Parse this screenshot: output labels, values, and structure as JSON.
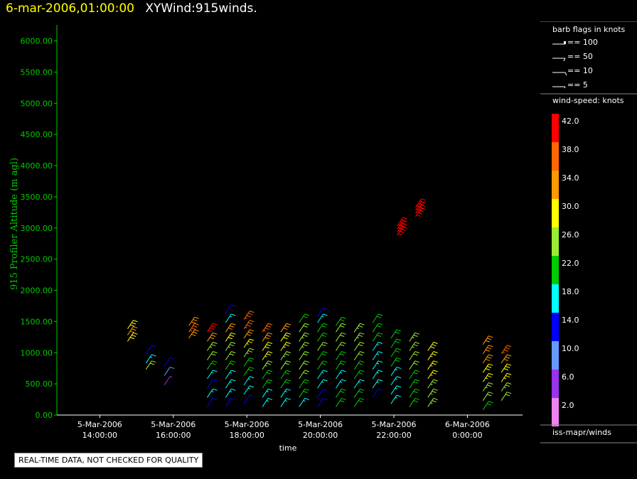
{
  "header": {
    "datetime": "6-mar-2006,01:00:00",
    "title": "XYWind:915winds."
  },
  "notice": "REAL-TIME DATA, NOT CHECKED FOR QUALITY",
  "footer_label": "iss-mapr/winds",
  "colors": {
    "axis_green": "#00cc00",
    "header_yellow": "#ffff00",
    "wind_scale": [
      "#ee82ee",
      "#9933ee",
      "#6699ff",
      "#0000ff",
      "#00ffff",
      "#00cc00",
      "#99ee33",
      "#ffff00",
      "#ff9900",
      "#ff6600",
      "#ff0000"
    ]
  },
  "legend": {
    "barb_title": "barb flags in knots",
    "barb_items": [
      "== 100",
      "== 50",
      "== 10",
      "== 5"
    ],
    "speed_title": "wind-speed: knots",
    "speed_ticks": [
      "42.0",
      "38.0",
      "34.0",
      "30.0",
      "26.0",
      "22.0",
      "18.0",
      "14.0",
      "10.0",
      "6.0",
      "2.0"
    ]
  },
  "chart_data": {
    "type": "scatter",
    "title": "XYWind:915winds.",
    "xlabel": "time",
    "ylabel": "915 Profiler Altitude (m agl)",
    "ylim": [
      0,
      6200
    ],
    "yticks": [
      "0.00",
      "500.00",
      "1000.00",
      "1500.00",
      "2000.00",
      "2500.00",
      "3000.00",
      "3500.00",
      "4000.00",
      "4500.00",
      "5000.00",
      "5500.00",
      "6000.00"
    ],
    "xlim": [
      "5-Mar-2006 12:50",
      "6-Mar-2006 01:30"
    ],
    "xticks": [
      {
        "date": "5-Mar-2006",
        "time": "14:00:00"
      },
      {
        "date": "5-Mar-2006",
        "time": "16:00:00"
      },
      {
        "date": "5-Mar-2006",
        "time": "18:00:00"
      },
      {
        "date": "5-Mar-2006",
        "time": "20:00:00"
      },
      {
        "date": "5-Mar-2006",
        "time": "22:00:00"
      },
      {
        "date": "6-Mar-2006",
        "time": "0:00:00"
      }
    ],
    "value_unit": "knots",
    "columns": [
      {
        "time": "5-Mar-2006 14:50",
        "altitudes": [
          1250,
          1350,
          1450
        ],
        "speeds": [
          30,
          32,
          30
        ]
      },
      {
        "time": "5-Mar-2006 15:20",
        "altitudes": [
          800,
          900,
          1050
        ],
        "speeds": [
          24,
          18,
          14
        ]
      },
      {
        "time": "5-Mar-2006 15:50",
        "altitudes": [
          550,
          700,
          850
        ],
        "speeds": [
          6,
          10,
          14
        ]
      },
      {
        "time": "5-Mar-2006 16:30",
        "altitudes": [
          1300,
          1400,
          1500
        ],
        "speeds": [
          34,
          36,
          34
        ]
      },
      {
        "time": "5-Mar-2006 17:00",
        "altitudes": [
          200,
          350,
          500,
          650,
          800,
          950,
          1100,
          1250,
          1400
        ],
        "speeds": [
          14,
          16,
          14,
          18,
          22,
          24,
          26,
          34,
          40
        ]
      },
      {
        "time": "5-Mar-2006 17:30",
        "altitudes": [
          200,
          350,
          500,
          650,
          800,
          950,
          1100,
          1250,
          1400,
          1550,
          1700
        ],
        "speeds": [
          14,
          16,
          18,
          18,
          22,
          24,
          26,
          30,
          34,
          18,
          14
        ]
      },
      {
        "time": "5-Mar-2006 18:00",
        "altitudes": [
          250,
          400,
          550,
          700,
          850,
          1000,
          1150,
          1300,
          1450,
          1600
        ],
        "speeds": [
          14,
          16,
          18,
          20,
          22,
          26,
          28,
          32,
          36,
          38
        ]
      },
      {
        "time": "5-Mar-2006 18:30",
        "altitudes": [
          200,
          350,
          500,
          650,
          800,
          950,
          1100,
          1250,
          1400
        ],
        "speeds": [
          16,
          18,
          20,
          22,
          26,
          28,
          30,
          34,
          38
        ]
      },
      {
        "time": "5-Mar-2006 19:00",
        "altitudes": [
          200,
          350,
          500,
          650,
          800,
          950,
          1100,
          1250,
          1400
        ],
        "speeds": [
          16,
          18,
          20,
          22,
          24,
          26,
          28,
          30,
          32
        ]
      },
      {
        "time": "5-Mar-2006 19:30",
        "altitudes": [
          200,
          350,
          500,
          650,
          800,
          950,
          1100,
          1250,
          1400,
          1550
        ],
        "speeds": [
          18,
          20,
          22,
          24,
          24,
          24,
          26,
          26,
          24,
          22
        ]
      },
      {
        "time": "5-Mar-2006 20:00",
        "altitudes": [
          200,
          350,
          500,
          650,
          800,
          950,
          1100,
          1250,
          1400,
          1550,
          1650
        ],
        "speeds": [
          14,
          14,
          16,
          18,
          20,
          22,
          24,
          22,
          20,
          16,
          14
        ]
      },
      {
        "time": "5-Mar-2006 20:30",
        "altitudes": [
          200,
          350,
          500,
          650,
          800,
          950,
          1100,
          1250,
          1400,
          1500
        ],
        "speeds": [
          22,
          20,
          18,
          18,
          20,
          22,
          24,
          24,
          24,
          22
        ]
      },
      {
        "time": "5-Mar-2006 21:00",
        "altitudes": [
          200,
          350,
          500,
          650,
          800,
          950,
          1100,
          1250,
          1400
        ],
        "speeds": [
          22,
          20,
          18,
          20,
          22,
          24,
          24,
          26,
          26
        ]
      },
      {
        "time": "5-Mar-2006 21:30",
        "altitudes": [
          350,
          500,
          650,
          800,
          950,
          1100,
          1250,
          1400,
          1550
        ],
        "speeds": [
          14,
          16,
          18,
          18,
          18,
          18,
          20,
          20,
          20
        ]
      },
      {
        "time": "5-Mar-2006 22:00",
        "altitudes": [
          250,
          400,
          550,
          700,
          850,
          1000,
          1150,
          1300
        ],
        "speeds": [
          18,
          16,
          18,
          18,
          20,
          20,
          20,
          20
        ]
      },
      {
        "time": "5-Mar-2006 22:30",
        "altitudes": [
          200,
          350,
          500,
          650,
          800,
          950,
          1100,
          1250
        ],
        "speeds": [
          20,
          20,
          22,
          22,
          24,
          24,
          26,
          26
        ]
      },
      {
        "time": "5-Mar-2006 23:00",
        "altitudes": [
          200,
          350,
          500,
          650,
          800,
          950,
          1100
        ],
        "speeds": [
          26,
          26,
          26,
          28,
          28,
          28,
          30
        ]
      },
      {
        "time": "6-Mar-2006 00:30",
        "altitudes": [
          150,
          300,
          450,
          600,
          750,
          900,
          1050,
          1200
        ],
        "speeds": [
          22,
          24,
          26,
          28,
          30,
          32,
          34,
          32
        ]
      },
      {
        "time": "6-Mar-2006 01:00",
        "altitudes": [
          300,
          450,
          600,
          750,
          900,
          1050
        ],
        "speeds": [
          24,
          26,
          28,
          30,
          32,
          36
        ]
      },
      {
        "time": "5-Mar-2006 22:10",
        "altitudes": [
          2950,
          3000,
          3050,
          3100
        ],
        "speeds": [
          42,
          42,
          42,
          42
        ]
      },
      {
        "time": "5-Mar-2006 22:40",
        "altitudes": [
          3250,
          3300,
          3350,
          3400
        ],
        "speeds": [
          40,
          40,
          42,
          40
        ]
      }
    ]
  }
}
